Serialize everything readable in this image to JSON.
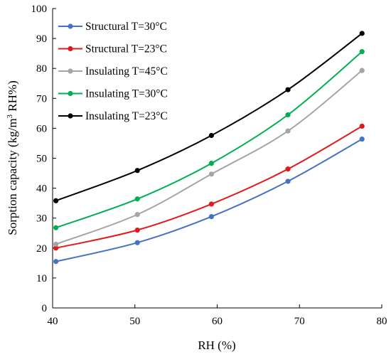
{
  "chart_data": {
    "type": "line",
    "xlabel": "RH (%)",
    "ylabel": "Sorption capacity (kg/m",
    "ylabel_sup": "3",
    "ylabel_tail": " RH%)",
    "xlim": [
      40,
      80
    ],
    "ylim": [
      0,
      100
    ],
    "xticks": [
      "40",
      "50",
      "60",
      "70",
      "80"
    ],
    "yticks": [
      "0",
      "10",
      "20",
      "30",
      "40",
      "50",
      "60",
      "70",
      "80",
      "90",
      "100"
    ],
    "grid": false,
    "legend_position": "top-left",
    "x": [
      40.4,
      50.3,
      59.3,
      68.6,
      77.6
    ],
    "series": [
      {
        "name": "Structural T=30°C",
        "color": "#4472c4",
        "values": [
          15.5,
          21.8,
          30.5,
          42.3,
          56.4
        ]
      },
      {
        "name": "Structural T=23°C",
        "color": "#e31a1c",
        "values": [
          20.0,
          26.0,
          34.7,
          46.4,
          60.7
        ]
      },
      {
        "name": "Insulating T=45°C",
        "color": "#a5a5a5",
        "values": [
          21.3,
          31.2,
          44.7,
          59.1,
          79.3
        ]
      },
      {
        "name": "Insulating T=30°C",
        "color": "#00b050",
        "values": [
          26.8,
          36.4,
          48.3,
          64.5,
          85.6
        ]
      },
      {
        "name": "Insulating T=23°C",
        "color": "#000000",
        "values": [
          35.8,
          45.9,
          57.6,
          72.9,
          91.7
        ]
      }
    ]
  }
}
